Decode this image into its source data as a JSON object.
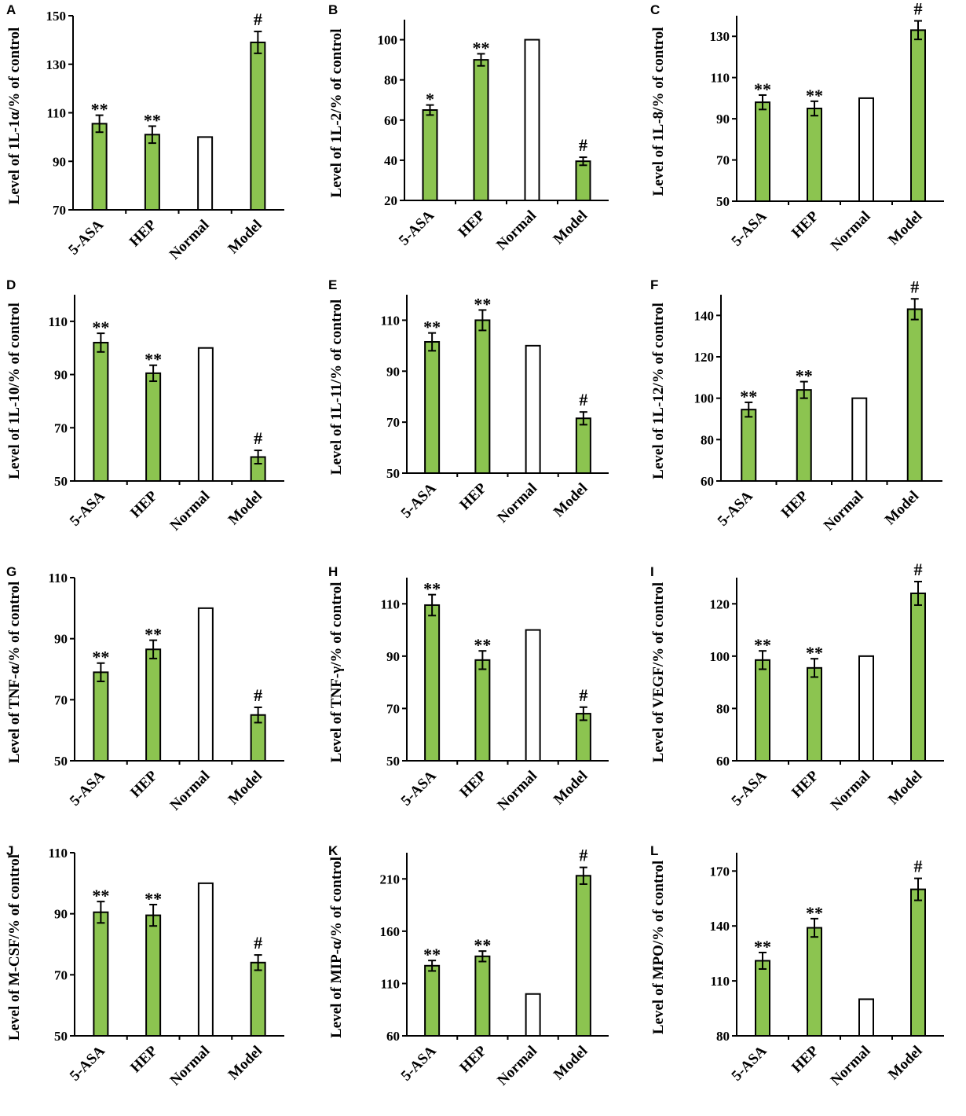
{
  "colors": {
    "treated_fill": "#8cc450",
    "normal_fill": "#ffffff",
    "stroke": "#000000"
  },
  "chart_data": [
    {
      "panel": "A",
      "type": "bar",
      "ylabel": "Level of 1L-1α/% of control",
      "categories": [
        "5-ASA",
        "HEP",
        "Normal",
        "Model"
      ],
      "values": [
        105.5,
        101,
        100,
        139
      ],
      "errors": [
        3.5,
        3.5,
        0,
        4.5
      ],
      "annotations": [
        "**",
        "**",
        "",
        "#"
      ],
      "ylim": [
        70,
        150
      ],
      "yticks": [
        70,
        90,
        110,
        130,
        150
      ]
    },
    {
      "panel": "B",
      "type": "bar",
      "ylabel": "Level of 1L-2/% of control",
      "categories": [
        "5-ASA",
        "HEP",
        "Normal",
        "Model"
      ],
      "values": [
        65,
        90,
        100,
        39.5
      ],
      "errors": [
        2.5,
        3,
        0,
        2
      ],
      "annotations": [
        "*",
        "**",
        "",
        "#"
      ],
      "ylim": [
        20,
        110
      ],
      "yticks": [
        20,
        40,
        60,
        80,
        100
      ]
    },
    {
      "panel": "C",
      "type": "bar",
      "ylabel": "Level of 1L-8/% of control",
      "categories": [
        "5-ASA",
        "HEP",
        "Normal",
        "Model"
      ],
      "values": [
        98,
        95,
        100,
        133
      ],
      "errors": [
        3.5,
        3.5,
        0,
        4.5
      ],
      "annotations": [
        "**",
        "**",
        "",
        "#"
      ],
      "ylim": [
        50,
        140
      ],
      "yticks": [
        50,
        70,
        90,
        110,
        130
      ]
    },
    {
      "panel": "D",
      "type": "bar",
      "ylabel": "Level of 1L-10/% of control",
      "categories": [
        "5-ASA",
        "HEP",
        "Normal",
        "Model"
      ],
      "values": [
        102,
        90.5,
        100,
        59
      ],
      "errors": [
        3.5,
        3,
        0,
        2.5
      ],
      "annotations": [
        "**",
        "**",
        "",
        "#"
      ],
      "ylim": [
        50,
        120
      ],
      "yticks": [
        50,
        70,
        90,
        110
      ]
    },
    {
      "panel": "E",
      "type": "bar",
      "ylabel": "Level of 1L-11/% of control",
      "categories": [
        "5-ASA",
        "HEP",
        "Normal",
        "Model"
      ],
      "values": [
        101.5,
        110,
        100,
        71.5
      ],
      "errors": [
        3.5,
        4,
        0,
        2.5
      ],
      "annotations": [
        "**",
        "**",
        "",
        "#"
      ],
      "ylim": [
        50,
        120
      ],
      "yticks": [
        50,
        70,
        90,
        110
      ]
    },
    {
      "panel": "F",
      "type": "bar",
      "ylabel": "Level of 1L-12/% of control",
      "categories": [
        "5-ASA",
        "HEP",
        "Normal",
        "Model"
      ],
      "values": [
        94.5,
        104,
        100,
        143
      ],
      "errors": [
        3.5,
        4,
        0,
        5
      ],
      "annotations": [
        "**",
        "**",
        "",
        "#"
      ],
      "ylim": [
        60,
        150
      ],
      "yticks": [
        60,
        80,
        100,
        120,
        140
      ]
    },
    {
      "panel": "G",
      "type": "bar",
      "ylabel": "Level of TNF-α/% of control",
      "categories": [
        "5-ASA",
        "HEP",
        "Normal",
        "Model"
      ],
      "values": [
        79,
        86.5,
        100,
        65
      ],
      "errors": [
        3,
        3,
        0,
        2.5
      ],
      "annotations": [
        "**",
        "**",
        "",
        "#"
      ],
      "ylim": [
        50,
        110
      ],
      "yticks": [
        50,
        70,
        90,
        110
      ]
    },
    {
      "panel": "H",
      "type": "bar",
      "ylabel": "Level of TNF-γ/% of control",
      "categories": [
        "5-ASA",
        "HEP",
        "Normal",
        "Model"
      ],
      "values": [
        109.5,
        88.5,
        100,
        68
      ],
      "errors": [
        4,
        3.5,
        0,
        2.5
      ],
      "annotations": [
        "**",
        "**",
        "",
        "#"
      ],
      "ylim": [
        50,
        120
      ],
      "yticks": [
        50,
        70,
        90,
        110
      ]
    },
    {
      "panel": "I",
      "type": "bar",
      "ylabel": "Level of VEGF/% of control",
      "categories": [
        "5-ASA",
        "HEP",
        "Normal",
        "Model"
      ],
      "values": [
        98.5,
        95.5,
        100,
        124
      ],
      "errors": [
        3.5,
        3.5,
        0,
        4.5
      ],
      "annotations": [
        "**",
        "**",
        "",
        "#"
      ],
      "ylim": [
        60,
        130
      ],
      "yticks": [
        60,
        80,
        100,
        120
      ]
    },
    {
      "panel": "J",
      "type": "bar",
      "ylabel": "Level of M-CSF/% of control",
      "categories": [
        "5-ASA",
        "HEP",
        "Normal",
        "Model"
      ],
      "values": [
        90.5,
        89.5,
        100,
        74
      ],
      "errors": [
        3.5,
        3.5,
        0,
        2.5
      ],
      "annotations": [
        "**",
        "**",
        "",
        "#"
      ],
      "ylim": [
        50,
        110
      ],
      "yticks": [
        50,
        70,
        90,
        110
      ]
    },
    {
      "panel": "K",
      "type": "bar",
      "ylabel": "Level of MIP-α/% of control",
      "categories": [
        "5-ASA",
        "HEP",
        "Normal",
        "Model"
      ],
      "values": [
        127,
        136,
        100,
        213
      ],
      "errors": [
        5,
        5,
        0,
        8
      ],
      "annotations": [
        "**",
        "**",
        "",
        "#"
      ],
      "ylim": [
        60,
        235
      ],
      "yticks": [
        60,
        110,
        160,
        210
      ]
    },
    {
      "panel": "L",
      "type": "bar",
      "ylabel": "Level of MPO/% of control",
      "categories": [
        "5-ASA",
        "HEP",
        "Normal",
        "Model"
      ],
      "values": [
        121,
        139,
        100,
        160
      ],
      "errors": [
        4.5,
        5,
        0,
        6
      ],
      "annotations": [
        "**",
        "**",
        "",
        "#"
      ],
      "ylim": [
        80,
        180
      ],
      "yticks": [
        80,
        110,
        140,
        170
      ]
    }
  ]
}
